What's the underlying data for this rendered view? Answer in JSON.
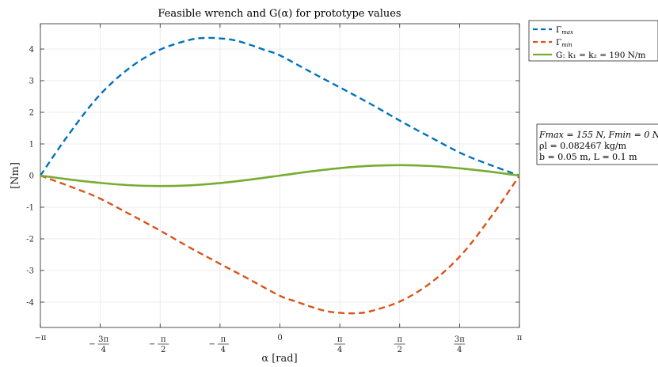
{
  "chart_data": {
    "type": "line",
    "title": "Feasible wrench and G(α) for prototype values",
    "xlabel": "α [rad]",
    "ylabel": "[Nm]",
    "xlim": [
      -3.14159,
      3.14159
    ],
    "ylim": [
      -4.8,
      4.8
    ],
    "grid": true,
    "legend_position": "outside-top-right",
    "x_ticks": [
      {
        "value": -3.14159,
        "label": "−π"
      },
      {
        "value": -2.35619,
        "label": "−3π/4"
      },
      {
        "value": -1.5708,
        "label": "−π/2"
      },
      {
        "value": -0.7854,
        "label": "−π/4"
      },
      {
        "value": 0,
        "label": "0"
      },
      {
        "value": 0.7854,
        "label": "π/4"
      },
      {
        "value": 1.5708,
        "label": "π/2"
      },
      {
        "value": 2.35619,
        "label": "3π/4"
      },
      {
        "value": 3.14159,
        "label": "π"
      }
    ],
    "y_ticks": [
      {
        "value": -4,
        "label": "-4"
      },
      {
        "value": -3,
        "label": "-3"
      },
      {
        "value": -2,
        "label": "-2"
      },
      {
        "value": -1,
        "label": "-1"
      },
      {
        "value": 0,
        "label": "0"
      },
      {
        "value": 1,
        "label": "1"
      },
      {
        "value": 2,
        "label": "2"
      },
      {
        "value": 3,
        "label": "3"
      },
      {
        "value": 4,
        "label": "4"
      }
    ],
    "series": [
      {
        "name": "Γmax",
        "color": "#0072BD",
        "style": "dashed",
        "x": [
          -3.14159,
          -2.8,
          -2.4,
          -2.0,
          -1.6,
          -1.2,
          -1.0,
          -0.8,
          -0.6,
          -0.4,
          -0.2,
          0.0,
          0.4,
          0.8,
          1.2,
          1.6,
          2.0,
          2.4,
          2.8,
          3.14159
        ],
        "y": [
          0.0,
          1.2,
          2.45,
          3.35,
          3.95,
          4.28,
          4.35,
          4.34,
          4.28,
          4.14,
          3.97,
          3.8,
          3.28,
          2.77,
          2.25,
          1.7,
          1.18,
          0.68,
          0.3,
          0.0
        ]
      },
      {
        "name": "Γmin",
        "color": "#D95319",
        "style": "dashed",
        "x": [
          -3.14159,
          -2.8,
          -2.4,
          -2.0,
          -1.6,
          -1.2,
          -0.8,
          -0.4,
          0.0,
          0.2,
          0.4,
          0.6,
          0.8,
          1.0,
          1.2,
          1.6,
          2.0,
          2.4,
          2.8,
          3.14159
        ],
        "y": [
          0.0,
          -0.3,
          -0.68,
          -1.18,
          -1.7,
          -2.25,
          -2.77,
          -3.28,
          -3.8,
          -3.97,
          -4.14,
          -4.28,
          -4.34,
          -4.35,
          -4.28,
          -3.95,
          -3.35,
          -2.45,
          -1.2,
          0.0
        ]
      },
      {
        "name": "G: k1 = k2 = 190 N/m",
        "color": "#77AC30",
        "style": "solid",
        "x": [
          -3.14159,
          -2.8,
          -2.4,
          -2.0,
          -1.6,
          -1.2,
          -0.8,
          -0.4,
          0.0,
          0.4,
          0.8,
          1.2,
          1.6,
          2.0,
          2.4,
          2.8,
          3.14159
        ],
        "y": [
          0.0,
          -0.11,
          -0.22,
          -0.3,
          -0.33,
          -0.31,
          -0.24,
          -0.13,
          0.0,
          0.13,
          0.24,
          0.31,
          0.33,
          0.3,
          0.22,
          0.11,
          0.0
        ]
      }
    ],
    "legend": [
      {
        "symbol": "Γ",
        "sub": "max"
      },
      {
        "symbol": "Γ",
        "sub": "min"
      },
      {
        "text": "G: k₁ = k₂ = 190 N/m"
      }
    ],
    "annotation": [
      "Fmax = 155 N, Fmin = 0 N",
      "ρl = 0.082467 kg/m",
      "b = 0.05 m, L = 0.1 m"
    ]
  }
}
